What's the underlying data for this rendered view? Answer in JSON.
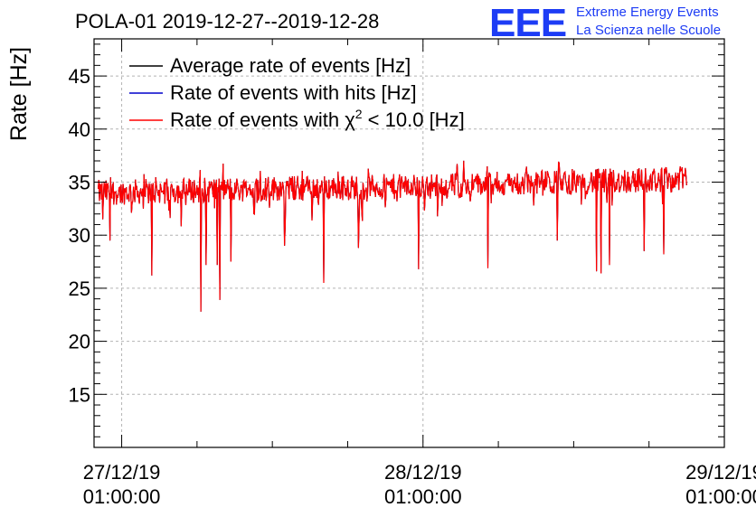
{
  "chart_data": {
    "type": "line",
    "title": "POLA-01 2019-12-27--2019-12-28",
    "ylabel": "Rate [Hz]",
    "xlabel": "",
    "ylim": [
      10,
      48.5
    ],
    "xlim": [
      -0.0917,
      2.0
    ],
    "yticks": [
      15,
      20,
      25,
      30,
      35,
      40,
      45
    ],
    "xticks": [
      {
        "x": 0,
        "date": "27/12/19",
        "time": "01:00:00"
      },
      {
        "x": 1,
        "date": "28/12/19",
        "time": "01:00:00"
      },
      {
        "x": 2,
        "date": "29/12/19",
        "time": "01:00:00"
      }
    ],
    "grid": true,
    "legend_position": "top-left",
    "series": [
      {
        "name": "Average rate of events [Hz]",
        "color": "#000000"
      },
      {
        "name": "Rate of events with hits [Hz]",
        "color": "#0000cc"
      },
      {
        "name": "Rate of events with χ² < 10.0 [Hz]",
        "label_main": "Rate of events with χ",
        "label_sup": "2",
        "label_tail": " < 10.0 [Hz]",
        "color": "#ff0000"
      }
    ],
    "data_range": {
      "x_start": -0.078,
      "x_end": 1.875
    },
    "trend": {
      "x": [
        -0.078,
        0.5,
        1.0,
        1.5,
        1.875
      ],
      "y": [
        34.0,
        34.4,
        34.6,
        35.0,
        35.3
      ]
    },
    "noise_amplitude": 1.2,
    "dips": [
      {
        "x": -0.062,
        "y": 31.5
      },
      {
        "x": -0.04,
        "y": 29.5
      },
      {
        "x": 0.1,
        "y": 26.2
      },
      {
        "x": 0.262,
        "y": 22.8
      },
      {
        "x": 0.28,
        "y": 27.2
      },
      {
        "x": 0.318,
        "y": 27.2
      },
      {
        "x": 0.326,
        "y": 23.9
      },
      {
        "x": 0.362,
        "y": 27.5
      },
      {
        "x": 0.54,
        "y": 29.0
      },
      {
        "x": 0.67,
        "y": 25.5
      },
      {
        "x": 0.785,
        "y": 28.8
      },
      {
        "x": 0.985,
        "y": 26.8
      },
      {
        "x": 1.215,
        "y": 26.9
      },
      {
        "x": 1.445,
        "y": 29.5
      },
      {
        "x": 1.575,
        "y": 26.6
      },
      {
        "x": 1.59,
        "y": 26.4
      },
      {
        "x": 1.62,
        "y": 27.2
      },
      {
        "x": 1.735,
        "y": 28.5
      },
      {
        "x": 1.8,
        "y": 28.2
      }
    ]
  },
  "logo": {
    "text": "EEE",
    "line1": "Extreme Energy Events",
    "line2": "La Scienza nelle Scuole",
    "color": "#1d3cf5"
  }
}
